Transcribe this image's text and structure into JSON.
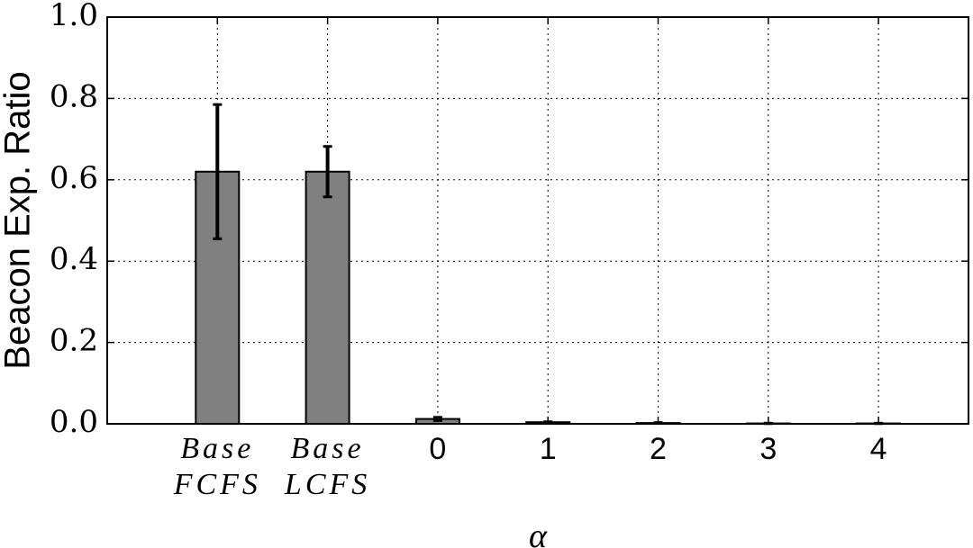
{
  "chart_data": {
    "type": "bar",
    "x_label": "α",
    "y_label": "Beacon Exp. Ratio",
    "categories": [
      "Base\nFCFS",
      "Base\nLCFS",
      "0",
      "1",
      "2",
      "3",
      "4"
    ],
    "values": [
      0.62,
      0.62,
      0.012,
      0.004,
      0.002,
      0.001,
      0.001
    ],
    "errors": [
      0.165,
      0.062,
      0.004,
      0.001,
      0.001,
      0.0005,
      0.0005
    ],
    "color": "#808080",
    "ylim": [
      0,
      1
    ],
    "yticks": [
      {
        "value": 0,
        "label": "0.0"
      },
      0.2,
      0.4,
      0.6,
      0.8,
      {
        "value": 1,
        "label": "1.0"
      }
    ],
    "grid": true
  }
}
